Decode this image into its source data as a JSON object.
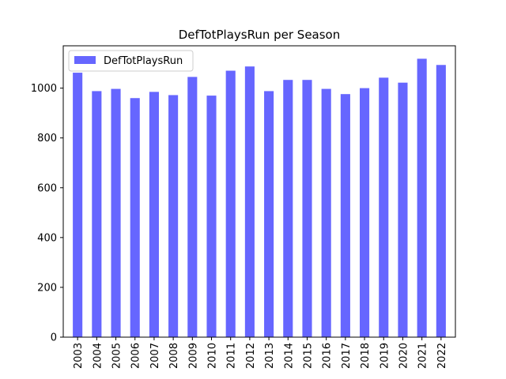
{
  "chart_data": {
    "type": "bar",
    "title": "DefTotPlaysRun per Season",
    "xlabel": "",
    "ylabel": "",
    "categories": [
      "2003",
      "2004",
      "2005",
      "2006",
      "2007",
      "2008",
      "2009",
      "2010",
      "2011",
      "2012",
      "2013",
      "2014",
      "2015",
      "2016",
      "2017",
      "2018",
      "2019",
      "2020",
      "2021",
      "2022"
    ],
    "series": [
      {
        "name": "DefTotPlaysRun",
        "color": "#6666ff",
        "values": [
          1062,
          988,
          997,
          960,
          985,
          972,
          1045,
          970,
          1070,
          1087,
          988,
          1033,
          1033,
          997,
          976,
          1000,
          1042,
          1022,
          1118,
          1093
        ]
      }
    ],
    "ylim": [
      0,
      1170
    ],
    "yticks": [
      0,
      200,
      400,
      600,
      800,
      1000
    ],
    "grid": false,
    "legend": "upper-left"
  }
}
